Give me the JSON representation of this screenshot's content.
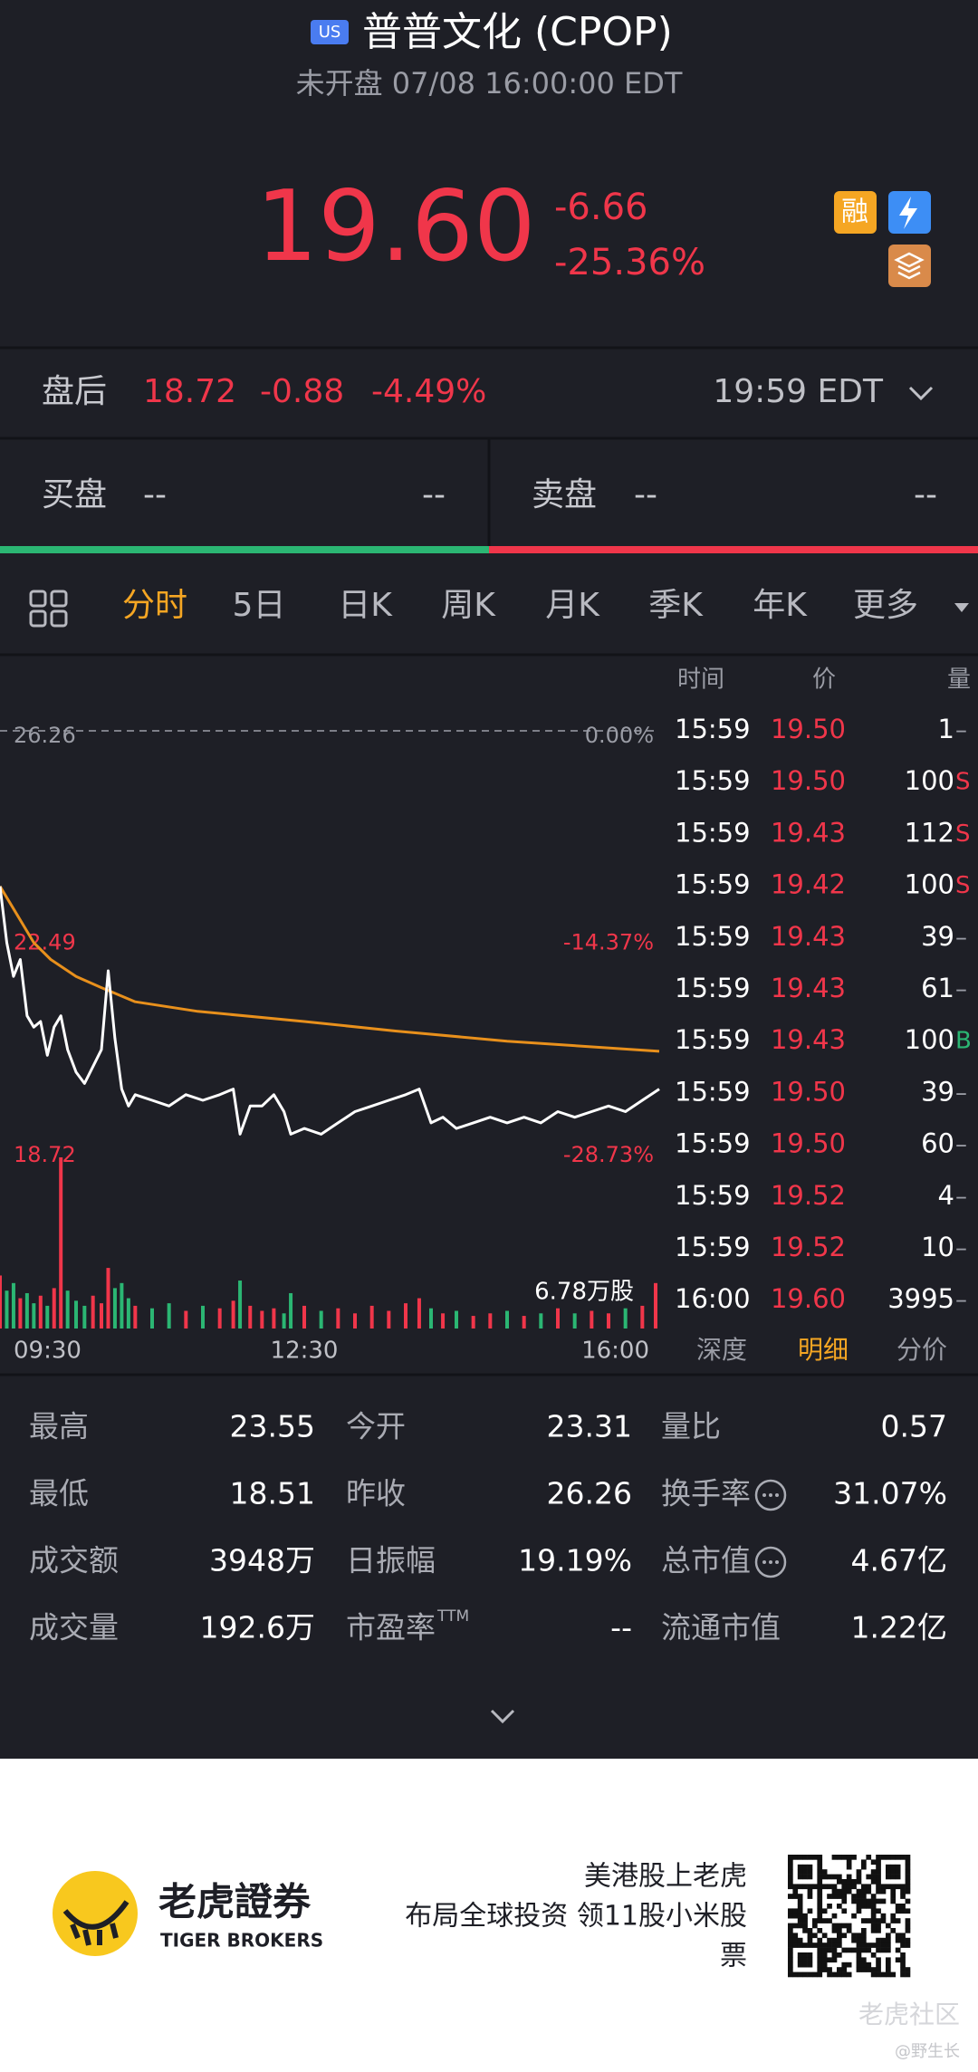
{
  "header": {
    "badge": "US",
    "title": "普普文化 (CPOP)",
    "status": "未开盘 07/08 16:00:00 EDT",
    "price": "19.60",
    "change": "-6.66",
    "change_pct": "-25.36%",
    "margin_badge": "融"
  },
  "after_hours": {
    "label": "盘后",
    "price": "18.72",
    "change": "-0.88",
    "change_pct": "-4.49%",
    "time": "19:59 EDT"
  },
  "order_book": {
    "bid_label": "买盘",
    "bid_price": "--",
    "bid_size": "--",
    "ask_label": "卖盘",
    "ask_price": "--",
    "ask_size": "--"
  },
  "tabs": [
    "分时",
    "5日",
    "日K",
    "周K",
    "月K",
    "季K",
    "年K",
    "更多"
  ],
  "active_tab": 0,
  "intraday": {
    "xlim": [
      0,
      390
    ],
    "xticks": [
      {
        "value": 0,
        "label": "09:30"
      },
      {
        "value": 180,
        "label": "12:30"
      },
      {
        "value": 390,
        "label": "16:00"
      }
    ],
    "ylim": [
      18.72,
      26.26
    ],
    "yticks": [
      26.26,
      22.49,
      18.72
    ],
    "y_pct_labels": [
      "0.00%",
      "-14.37%",
      "-28.73%"
    ],
    "vlim": [
      0,
      6.78
    ],
    "volume_label": {
      "value": 6.78,
      "label": "6.78万股"
    },
    "price_color": "#ffffff",
    "avg_color": "#e8901c",
    "up_color": "#f0364a",
    "down_color": "#2bb673",
    "x": [
      0,
      4,
      8,
      12,
      16,
      20,
      24,
      28,
      32,
      36,
      40,
      45,
      50,
      55,
      60,
      64,
      68,
      72,
      76,
      80,
      90,
      100,
      110,
      120,
      130,
      138,
      142,
      148,
      155,
      162,
      168,
      172,
      180,
      190,
      200,
      210,
      220,
      230,
      240,
      248,
      255,
      262,
      270,
      280,
      290,
      300,
      310,
      320,
      330,
      340,
      350,
      360,
      370,
      380,
      390
    ],
    "price": [
      23.5,
      22.5,
      21.9,
      22.2,
      21.2,
      21.0,
      21.1,
      20.5,
      21.0,
      21.2,
      20.6,
      20.2,
      20.0,
      20.3,
      20.6,
      22.0,
      20.8,
      19.9,
      19.6,
      19.8,
      19.7,
      19.6,
      19.8,
      19.7,
      19.8,
      19.9,
      19.1,
      19.6,
      19.6,
      19.8,
      19.5,
      19.1,
      19.2,
      19.1,
      19.3,
      19.5,
      19.6,
      19.7,
      19.8,
      19.9,
      19.3,
      19.4,
      19.2,
      19.3,
      19.4,
      19.3,
      19.4,
      19.3,
      19.5,
      19.4,
      19.5,
      19.6,
      19.5,
      19.7,
      19.9
    ],
    "volume": [
      2.1,
      1.5,
      1.8,
      1.2,
      1.4,
      1.0,
      1.3,
      0.9,
      1.6,
      6.78,
      1.5,
      1.1,
      0.9,
      1.3,
      1.0,
      2.4,
      1.6,
      1.8,
      1.2,
      0.9,
      0.8,
      1.0,
      0.7,
      0.9,
      0.8,
      1.1,
      1.9,
      0.9,
      0.7,
      0.8,
      0.6,
      1.4,
      0.9,
      0.7,
      0.8,
      0.6,
      0.9,
      0.7,
      1.0,
      1.2,
      0.8,
      0.6,
      0.7,
      0.5,
      0.6,
      0.7,
      0.5,
      0.6,
      0.8,
      0.6,
      0.7,
      0.6,
      0.8,
      0.9,
      1.8
    ],
    "avg_x": [
      0,
      10,
      20,
      30,
      45,
      60,
      80,
      117,
      180,
      234,
      300,
      390
    ],
    "avg": [
      23.5,
      23.0,
      22.5,
      22.2,
      21.9,
      21.7,
      21.45,
      21.28,
      21.1,
      20.93,
      20.75,
      20.57
    ]
  },
  "trades": {
    "columns": [
      "时间",
      "价",
      "量"
    ],
    "rows": [
      {
        "time": "15:59",
        "price": "19.50",
        "qty": "1",
        "side": "–"
      },
      {
        "time": "15:59",
        "price": "19.50",
        "qty": "100",
        "side": "S"
      },
      {
        "time": "15:59",
        "price": "19.43",
        "qty": "112",
        "side": "S"
      },
      {
        "time": "15:59",
        "price": "19.42",
        "qty": "100",
        "side": "S"
      },
      {
        "time": "15:59",
        "price": "19.43",
        "qty": "39",
        "side": "–"
      },
      {
        "time": "15:59",
        "price": "19.43",
        "qty": "61",
        "side": "–"
      },
      {
        "time": "15:59",
        "price": "19.43",
        "qty": "100",
        "side": "B"
      },
      {
        "time": "15:59",
        "price": "19.50",
        "qty": "39",
        "side": "–"
      },
      {
        "time": "15:59",
        "price": "19.50",
        "qty": "60",
        "side": "–"
      },
      {
        "time": "15:59",
        "price": "19.52",
        "qty": "4",
        "side": "–"
      },
      {
        "time": "15:59",
        "price": "19.52",
        "qty": "10",
        "side": "–"
      },
      {
        "time": "16:00",
        "price": "19.60",
        "qty": "3995",
        "side": "–"
      }
    ],
    "tabs": [
      "深度",
      "明细",
      "分价"
    ],
    "active_tab": 1
  },
  "stats": [
    [
      {
        "label": "最高",
        "value": "23.55"
      },
      {
        "label": "今开",
        "value": "23.31"
      },
      {
        "label": "量比",
        "value": "0.57"
      }
    ],
    [
      {
        "label": "最低",
        "value": "18.51"
      },
      {
        "label": "昨收",
        "value": "26.26"
      },
      {
        "label": "换手率",
        "value": "31.07%",
        "info": true
      }
    ],
    [
      {
        "label": "成交额",
        "value": "3948万"
      },
      {
        "label": "日振幅",
        "value": "19.19%"
      },
      {
        "label": "总市值",
        "value": "4.67亿",
        "info": true
      }
    ],
    [
      {
        "label": "成交量",
        "value": "192.6万"
      },
      {
        "label": "市盈率",
        "sup": "TTM",
        "value": "--"
      },
      {
        "label": "流通市值",
        "value": "1.22亿"
      }
    ]
  ],
  "footer": {
    "brand": "老虎證券",
    "brand_en": "TIGER BROKERS",
    "slogan": [
      "美港股上老虎",
      "布局全球投资 领11股小米股",
      "票"
    ],
    "watermark": "老虎社区",
    "watermark_user": "@野生长"
  }
}
